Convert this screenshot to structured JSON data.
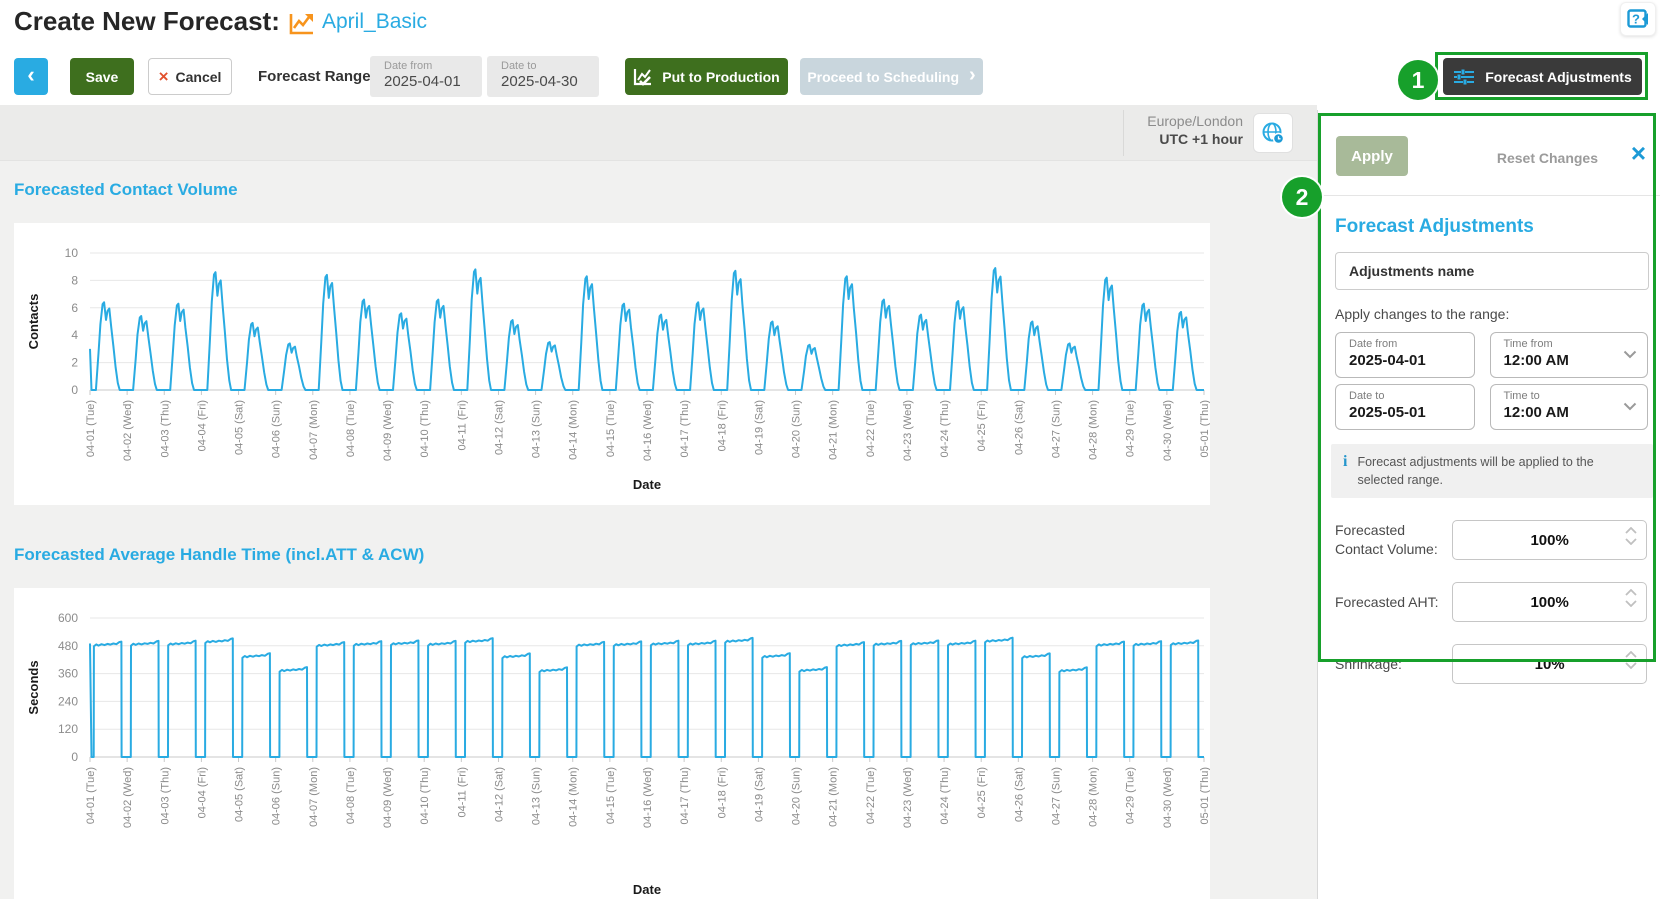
{
  "header": {
    "title": "Create New Forecast:",
    "forecast_name": "April_Basic"
  },
  "toolbar": {
    "back_chevron": "‹",
    "save_label": "Save",
    "cancel_x": "×",
    "cancel_label": "Cancel",
    "forecast_range_label": "Forecast Range:",
    "date_from": {
      "label": "Date from",
      "value": "2025-04-01"
    },
    "date_to": {
      "label": "Date to",
      "value": "2025-04-30"
    },
    "put_to_production_label": "Put to Production",
    "proceed_to_scheduling_label": "Proceed to Scheduling",
    "proceed_chevron": "›",
    "forecast_adjustments_label": "Forecast Adjustments"
  },
  "annotations": {
    "step1": "1",
    "step2": "2",
    "highlight_color": "#17a02b"
  },
  "timezone": {
    "region": "Europe/London",
    "offset": "UTC +1 hour"
  },
  "panel": {
    "apply_label": "Apply",
    "reset_label": "Reset Changes",
    "close_x": "×",
    "title": "Forecast Adjustments",
    "name_placeholder": "Adjustments name",
    "range_label": "Apply changes to the range:",
    "date_from": {
      "label": "Date from",
      "value": "2025-04-01"
    },
    "time_from": {
      "label": "Time from",
      "value": "12:00 AM"
    },
    "date_to": {
      "label": "Date to",
      "value": "2025-05-01"
    },
    "time_to": {
      "label": "Time to",
      "value": "12:00 AM"
    },
    "info_symbol": "i",
    "info_text": "Forecast adjustments will be applied to the selected range.",
    "fields": [
      {
        "label": "Forecasted Contact Volume:",
        "value": "100%"
      },
      {
        "label": "Forecasted AHT:",
        "value": "100%"
      },
      {
        "label": "Shrinkage:",
        "value": "10%"
      }
    ]
  },
  "chart_data": [
    {
      "type": "line",
      "title": "Forecasted Contact Volume",
      "xlabel": "Date",
      "ylabel": "Contacts",
      "ylim": [
        0,
        10
      ],
      "yticks": [
        0,
        2,
        4,
        6,
        8,
        10
      ],
      "grid": true,
      "legend": "none",
      "line_color": "#29abe2",
      "x_labels": [
        "04-01 (Tue)",
        "04-02 (Wed)",
        "04-03 (Thu)",
        "04-04 (Fri)",
        "04-05 (Sat)",
        "04-06 (Sun)",
        "04-07 (Mon)",
        "04-08 (Tue)",
        "04-09 (Wed)",
        "04-10 (Thu)",
        "04-11 (Fri)",
        "04-12 (Sat)",
        "04-13 (Sun)",
        "04-14 (Mon)",
        "04-15 (Tue)",
        "04-16 (Wed)",
        "04-17 (Thu)",
        "04-18 (Fri)",
        "04-19 (Sat)",
        "04-20 (Sun)",
        "04-21 (Mon)",
        "04-22 (Tue)",
        "04-23 (Wed)",
        "04-24 (Thu)",
        "04-25 (Fri)",
        "04-26 (Sat)",
        "04-27 (Sun)",
        "04-28 (Mon)",
        "04-29 (Tue)",
        "04-30 (Wed)",
        "05-01 (Thu)"
      ],
      "start_value": 3,
      "day_peaks": [
        6.4,
        5.4,
        6.3,
        8.6,
        4.9,
        3.4,
        8.4,
        6.6,
        5.6,
        6.6,
        8.8,
        5.1,
        3.5,
        8.3,
        6.3,
        5.5,
        6.4,
        8.7,
        5.0,
        3.3,
        8.3,
        6.6,
        5.5,
        6.5,
        8.9,
        5.0,
        3.4,
        8.2,
        6.3,
        5.7
      ]
    },
    {
      "type": "line",
      "title": "Forecasted Average Handle Time (incl.ATT & ACW)",
      "xlabel": "Date",
      "ylabel": "Seconds",
      "ylim": [
        0,
        600
      ],
      "yticks": [
        0,
        120,
        240,
        360,
        480,
        600
      ],
      "grid": true,
      "legend": "none",
      "line_color": "#29abe2",
      "x_labels": [
        "04-01 (Tue)",
        "04-02 (Wed)",
        "04-03 (Thu)",
        "04-04 (Fri)",
        "04-05 (Sat)",
        "04-06 (Sun)",
        "04-07 (Mon)",
        "04-08 (Tue)",
        "04-09 (Wed)",
        "04-10 (Thu)",
        "04-11 (Fri)",
        "04-12 (Sat)",
        "04-13 (Sun)",
        "04-14 (Mon)",
        "04-15 (Tue)",
        "04-16 (Wed)",
        "04-17 (Thu)",
        "04-18 (Fri)",
        "04-19 (Sat)",
        "04-20 (Sun)",
        "04-21 (Mon)",
        "04-22 (Tue)",
        "04-23 (Wed)",
        "04-24 (Thu)",
        "04-25 (Fri)",
        "04-26 (Sat)",
        "04-27 (Sun)",
        "04-28 (Mon)",
        "04-29 (Tue)",
        "04-30 (Wed)",
        "05-01 (Thu)"
      ],
      "start_value": 490,
      "day_rise": 18,
      "day_values": [
        478,
        481,
        482,
        492,
        428,
        368,
        476,
        480,
        483,
        481,
        493,
        427,
        367,
        477,
        479,
        482,
        482,
        494,
        428,
        368,
        476,
        481,
        483,
        482,
        495,
        427,
        367,
        478,
        480,
        483
      ]
    }
  ]
}
